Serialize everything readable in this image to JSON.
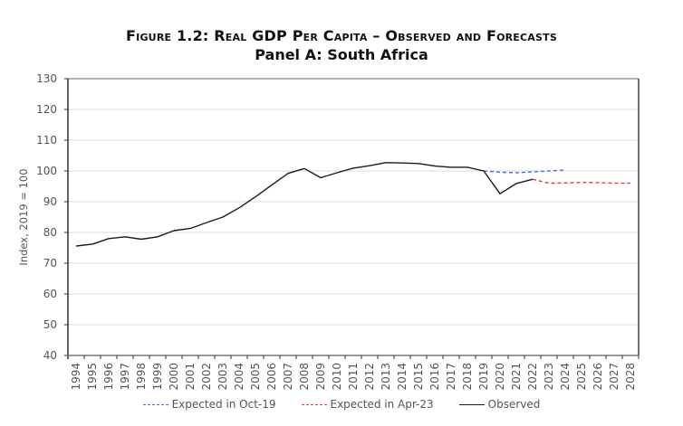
{
  "chart_data": {
    "type": "line",
    "title": "Figure 1.2: Real GDP Per Capita – Observed and Forecasts",
    "subtitle": "Panel A: South Africa",
    "xlabel": "",
    "ylabel": "Index, 2019 = 100",
    "ylim": [
      40,
      130
    ],
    "yticks": [
      40,
      50,
      60,
      70,
      80,
      90,
      100,
      110,
      120,
      130
    ],
    "grid": true,
    "legend_position": "bottom",
    "categories": [
      "1994",
      "1995",
      "1996",
      "1997",
      "1998",
      "1999",
      "2000",
      "2001",
      "2002",
      "2003",
      "2004",
      "2005",
      "2006",
      "2007",
      "2008",
      "2009",
      "2010",
      "2011",
      "2012",
      "2013",
      "2014",
      "2015",
      "2016",
      "2017",
      "2018",
      "2019",
      "2020",
      "2021",
      "2022",
      "2023",
      "2024",
      "2025",
      "2026",
      "2027",
      "2028"
    ],
    "series": [
      {
        "name": "Expected in Oct-19",
        "color": "#4a6cf0",
        "style": "dashed",
        "start": "2019",
        "values": [
          100.0,
          99.6,
          99.4,
          99.7,
          100.0,
          100.3
        ]
      },
      {
        "name": "Expected in Apr-23",
        "color": "#f03a3a",
        "style": "dashed",
        "start": "2022",
        "values": [
          97.3,
          96.0,
          96.1,
          96.3,
          96.2,
          96.0,
          96.0
        ]
      },
      {
        "name": "Observed",
        "color": "#1a1a1a",
        "style": "solid",
        "start": "1994",
        "values": [
          75.6,
          76.2,
          78.0,
          78.6,
          77.8,
          78.6,
          80.6,
          81.3,
          83.2,
          85.0,
          88.0,
          91.6,
          95.4,
          99.2,
          100.8,
          97.8,
          99.4,
          100.9,
          101.7,
          102.7,
          102.6,
          102.4,
          101.6,
          101.2,
          101.2,
          100.0,
          92.6,
          95.9,
          97.3
        ]
      }
    ]
  }
}
